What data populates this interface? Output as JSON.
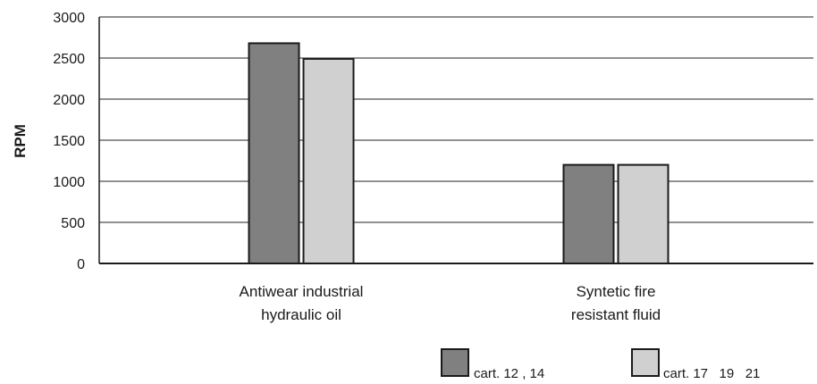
{
  "chart_data": {
    "type": "bar",
    "title": "",
    "xlabel": "",
    "ylabel": "RPM",
    "ylim": [
      0,
      3000
    ],
    "yticks": [
      0,
      500,
      1000,
      1500,
      2000,
      2500,
      3000
    ],
    "grid": true,
    "legend_position": "bottom-right",
    "categories": [
      [
        "Antiwear industrial",
        "hydraulic oil"
      ],
      [
        "Syntetic fire",
        "resistant fluid"
      ]
    ],
    "series": [
      {
        "name": "cart. 12 , 14",
        "color": "#808080",
        "values": [
          2680,
          1200
        ]
      },
      {
        "name": "cart. 17   19   21",
        "color": "#d0d0d0",
        "values": [
          2490,
          1200
        ]
      }
    ]
  }
}
